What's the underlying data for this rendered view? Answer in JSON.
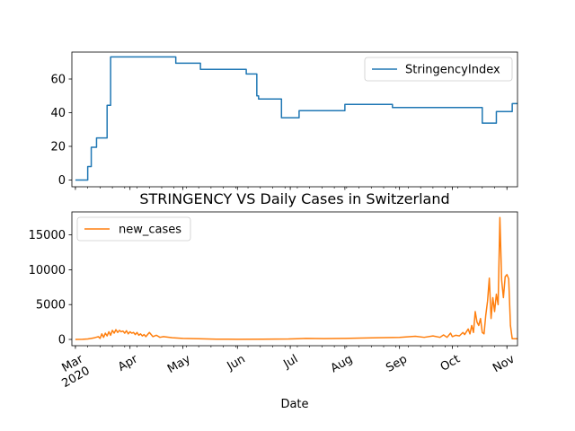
{
  "chart_data": [
    {
      "type": "line",
      "title": "",
      "xlabel": "",
      "ylabel": "",
      "ylim": [
        -4,
        76
      ],
      "y_ticks": [
        "0",
        "20",
        "40",
        "60"
      ],
      "legend": "top-right",
      "grid": false,
      "series": [
        {
          "name": "StringencyIndex",
          "color": "#1f77b4",
          "step": true,
          "points": [
            [
              "2020-03-01",
              0
            ],
            [
              "2020-03-08",
              8
            ],
            [
              "2020-03-10",
              19.5
            ],
            [
              "2020-03-13",
              25
            ],
            [
              "2020-03-19",
              44.4
            ],
            [
              "2020-03-21",
              73.15
            ],
            [
              "2020-04-27",
              69.4
            ],
            [
              "2020-05-11",
              65.7
            ],
            [
              "2020-06-06",
              63
            ],
            [
              "2020-06-12",
              50
            ],
            [
              "2020-06-13",
              48.1
            ],
            [
              "2020-06-26",
              37
            ],
            [
              "2020-07-06",
              41.2
            ],
            [
              "2020-08-01",
              44.9
            ],
            [
              "2020-08-28",
              43.1
            ],
            [
              "2020-10-18",
              33.8
            ],
            [
              "2020-10-26",
              40.7
            ],
            [
              "2020-11-04",
              45.4
            ],
            [
              "2020-11-07",
              45.4
            ]
          ]
        }
      ]
    },
    {
      "type": "line",
      "title": "STRINGENCY VS Daily Cases in Switzerland",
      "xlabel": "Date",
      "ylabel": "",
      "ylim": [
        -900,
        18300
      ],
      "y_ticks": [
        "0",
        "5000",
        "10000",
        "15000"
      ],
      "legend": "top-left",
      "grid": false,
      "x_ticks": [
        {
          "month": "Mar",
          "year": "2020"
        },
        {
          "month": "Apr",
          "year": ""
        },
        {
          "month": "May",
          "year": ""
        },
        {
          "month": "Jun",
          "year": ""
        },
        {
          "month": "Jul",
          "year": ""
        },
        {
          "month": "Aug",
          "year": ""
        },
        {
          "month": "Sep",
          "year": ""
        },
        {
          "month": "Oct",
          "year": ""
        },
        {
          "month": "Nov",
          "year": ""
        }
      ],
      "series": [
        {
          "name": "new_cases",
          "color": "#ff7f0e",
          "points": [
            [
              "2020-03-01",
              0
            ],
            [
              "2020-03-05",
              20
            ],
            [
              "2020-03-08",
              60
            ],
            [
              "2020-03-10",
              150
            ],
            [
              "2020-03-12",
              250
            ],
            [
              "2020-03-14",
              400
            ],
            [
              "2020-03-15",
              150
            ],
            [
              "2020-03-16",
              800
            ],
            [
              "2020-03-17",
              300
            ],
            [
              "2020-03-18",
              900
            ],
            [
              "2020-03-19",
              500
            ],
            [
              "2020-03-20",
              1100
            ],
            [
              "2020-03-21",
              600
            ],
            [
              "2020-03-22",
              1300
            ],
            [
              "2020-03-23",
              900
            ],
            [
              "2020-03-24",
              1400
            ],
            [
              "2020-03-25",
              1000
            ],
            [
              "2020-03-26",
              1300
            ],
            [
              "2020-03-27",
              1100
            ],
            [
              "2020-03-28",
              1200
            ],
            [
              "2020-03-29",
              900
            ],
            [
              "2020-03-30",
              1250
            ],
            [
              "2020-03-31",
              800
            ],
            [
              "2020-04-01",
              1100
            ],
            [
              "2020-04-02",
              900
            ],
            [
              "2020-04-03",
              1000
            ],
            [
              "2020-04-04",
              700
            ],
            [
              "2020-04-05",
              1000
            ],
            [
              "2020-04-06",
              600
            ],
            [
              "2020-04-07",
              800
            ],
            [
              "2020-04-08",
              500
            ],
            [
              "2020-04-09",
              700
            ],
            [
              "2020-04-10",
              400
            ],
            [
              "2020-04-12",
              1000
            ],
            [
              "2020-04-14",
              400
            ],
            [
              "2020-04-16",
              600
            ],
            [
              "2020-04-18",
              300
            ],
            [
              "2020-04-20",
              400
            ],
            [
              "2020-04-25",
              250
            ],
            [
              "2020-05-01",
              150
            ],
            [
              "2020-05-10",
              100
            ],
            [
              "2020-05-20",
              40
            ],
            [
              "2020-06-01",
              20
            ],
            [
              "2020-06-15",
              30
            ],
            [
              "2020-06-30",
              60
            ],
            [
              "2020-07-05",
              100
            ],
            [
              "2020-07-10",
              140
            ],
            [
              "2020-07-20",
              120
            ],
            [
              "2020-08-01",
              150
            ],
            [
              "2020-08-10",
              200
            ],
            [
              "2020-08-20",
              250
            ],
            [
              "2020-09-01",
              300
            ],
            [
              "2020-09-10",
              450
            ],
            [
              "2020-09-15",
              300
            ],
            [
              "2020-09-20",
              500
            ],
            [
              "2020-09-24",
              300
            ],
            [
              "2020-09-26",
              650
            ],
            [
              "2020-09-28",
              300
            ],
            [
              "2020-09-30",
              900
            ],
            [
              "2020-10-01",
              400
            ],
            [
              "2020-10-03",
              600
            ],
            [
              "2020-10-05",
              500
            ],
            [
              "2020-10-07",
              1000
            ],
            [
              "2020-10-08",
              700
            ],
            [
              "2020-10-10",
              1500
            ],
            [
              "2020-10-11",
              800
            ],
            [
              "2020-10-12",
              2000
            ],
            [
              "2020-10-13",
              1000
            ],
            [
              "2020-10-14",
              4000
            ],
            [
              "2020-10-15",
              2500
            ],
            [
              "2020-10-16",
              2000
            ],
            [
              "2020-10-17",
              3000
            ],
            [
              "2020-10-18",
              1000
            ],
            [
              "2020-10-19",
              800
            ],
            [
              "2020-10-20",
              3500
            ],
            [
              "2020-10-21",
              5500
            ],
            [
              "2020-10-22",
              8800
            ],
            [
              "2020-10-23",
              3000
            ],
            [
              "2020-10-24",
              6000
            ],
            [
              "2020-10-25",
              4000
            ],
            [
              "2020-10-26",
              6500
            ],
            [
              "2020-10-27",
              5000
            ],
            [
              "2020-10-28",
              17500
            ],
            [
              "2020-10-29",
              8500
            ],
            [
              "2020-10-30",
              6000
            ],
            [
              "2020-10-31",
              9000
            ],
            [
              "2020-11-01",
              9300
            ],
            [
              "2020-11-02",
              8700
            ],
            [
              "2020-11-03",
              2000
            ],
            [
              "2020-11-04",
              100
            ],
            [
              "2020-11-07",
              100
            ]
          ]
        }
      ]
    }
  ]
}
